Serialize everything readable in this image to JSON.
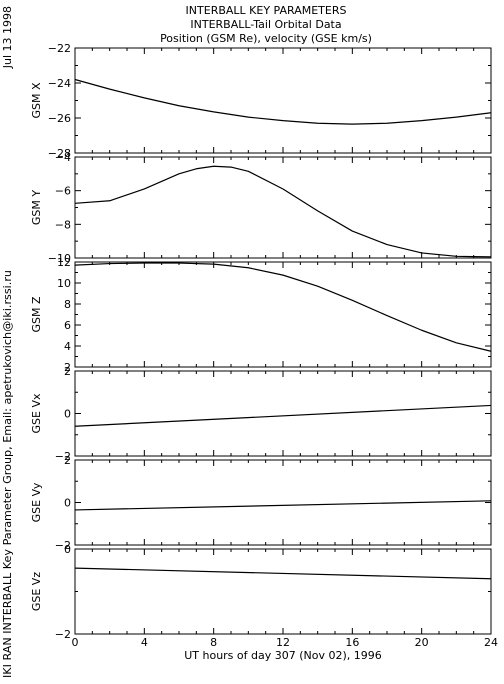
{
  "header": {
    "lines": [
      "INTERBALL KEY PARAMETERS",
      "INTERBALL-Tail Orbital Data",
      "Position (GSM Re), velocity (GSE km/s)"
    ]
  },
  "side_labels": {
    "date": "Jul 13 1998",
    "credit": "IKI RAN INTERBALL Key Parameter Group, Email: apetrukovich@iki.rssi.ru"
  },
  "chart_data": {
    "type": "line",
    "xlabel": "UT hours of day 307 (Nov 02), 1996",
    "xlim": [
      0,
      24
    ],
    "xticks": [
      0,
      4,
      8,
      12,
      16,
      20,
      24
    ],
    "grid": false,
    "panels": [
      {
        "ylabel": "GSM X",
        "ylim": [
          -28,
          -22
        ],
        "yticks": [
          -22,
          -24,
          -26,
          -28
        ],
        "x": [
          0,
          2,
          4,
          6,
          8,
          10,
          12,
          14,
          16,
          18,
          20,
          22,
          24
        ],
        "y": [
          -23.8,
          -24.35,
          -24.85,
          -25.3,
          -25.65,
          -25.95,
          -26.15,
          -26.3,
          -26.35,
          -26.3,
          -26.15,
          -25.95,
          -25.7
        ]
      },
      {
        "ylabel": "GSM Y",
        "ylim": [
          -10,
          -4
        ],
        "yticks": [
          -4,
          -6,
          -8,
          -10
        ],
        "x": [
          0,
          2,
          4,
          6,
          7,
          8,
          9,
          10,
          12,
          14,
          16,
          18,
          20,
          22,
          23,
          24
        ],
        "y": [
          -6.75,
          -6.6,
          -5.9,
          -5.0,
          -4.7,
          -4.55,
          -4.6,
          -4.85,
          -5.9,
          -7.2,
          -8.4,
          -9.2,
          -9.7,
          -9.9,
          -9.92,
          -9.93
        ]
      },
      {
        "ylabel": "GSM Z",
        "ylim": [
          2,
          12
        ],
        "yticks": [
          12,
          10,
          8,
          6,
          4,
          2
        ],
        "x": [
          0,
          2,
          4,
          6,
          8,
          10,
          12,
          14,
          16,
          18,
          20,
          22,
          24
        ],
        "y": [
          11.7,
          11.85,
          11.9,
          11.9,
          11.8,
          11.45,
          10.75,
          9.7,
          8.35,
          6.9,
          5.5,
          4.3,
          3.5
        ]
      },
      {
        "ylabel": "GSE Vx",
        "ylim": [
          -2,
          2
        ],
        "yticks": [
          2,
          0,
          -2
        ],
        "x": [
          0,
          24
        ],
        "y": [
          -0.6,
          0.38
        ]
      },
      {
        "ylabel": "GSE Vy",
        "ylim": [
          -2,
          2
        ],
        "yticks": [
          2,
          0,
          -2
        ],
        "x": [
          0,
          24
        ],
        "y": [
          -0.35,
          0.08
        ]
      },
      {
        "ylabel": "GSE Vz",
        "ylim": [
          -2,
          0
        ],
        "yticks": [
          0,
          -2
        ],
        "x": [
          0,
          24
        ],
        "y": [
          -0.45,
          -0.7
        ]
      }
    ]
  }
}
